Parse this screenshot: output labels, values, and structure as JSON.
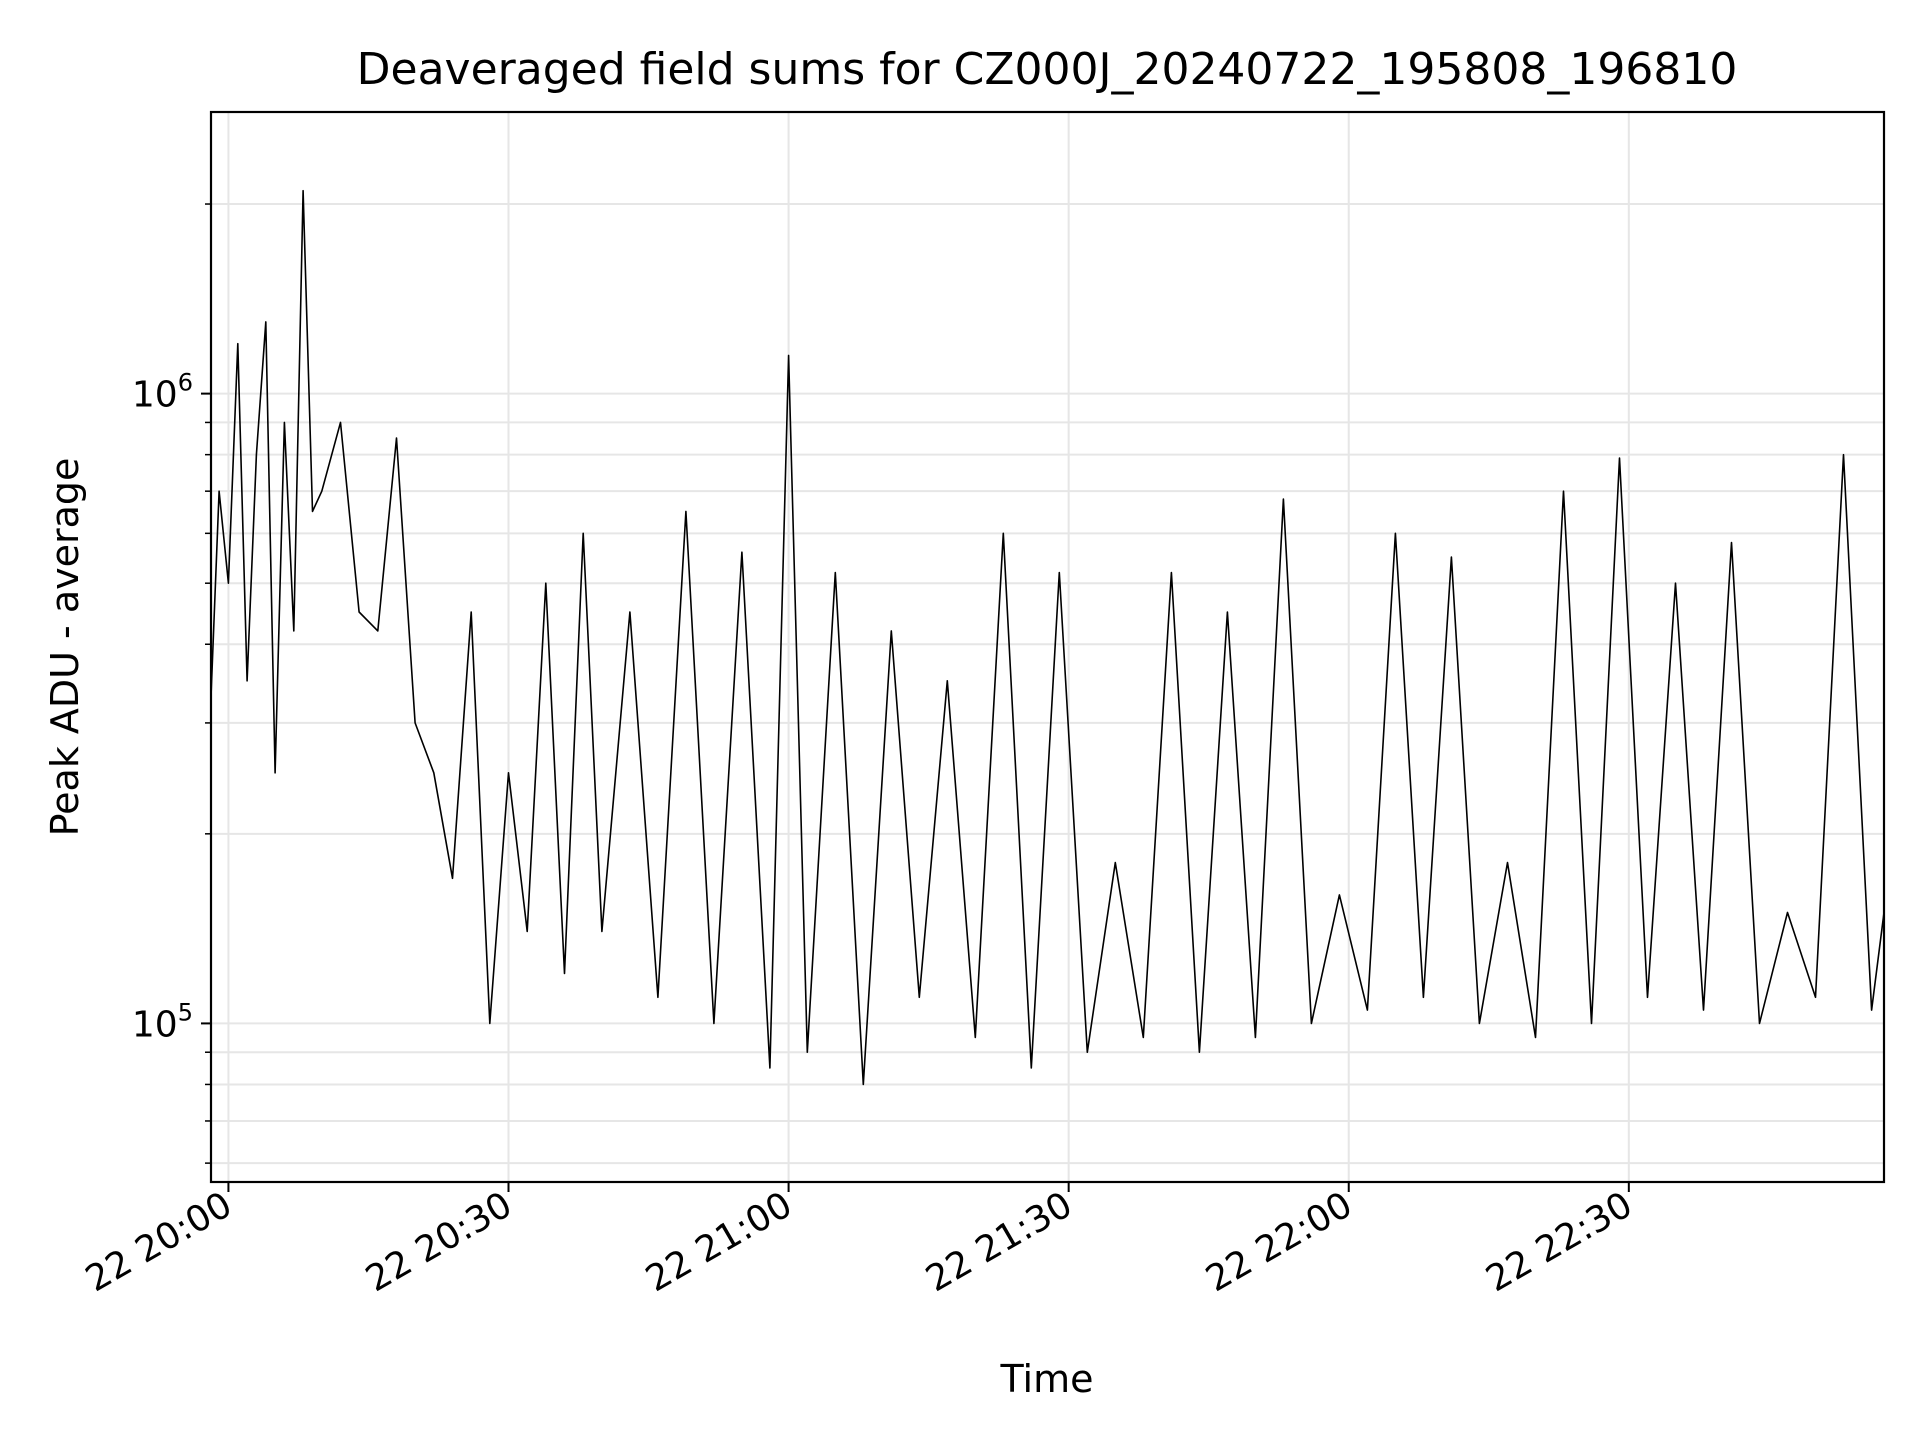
{
  "chart_data": {
    "type": "line",
    "title": "Deaveraged field sums for CZ000J_20240722_195808_196810",
    "xlabel": "Time",
    "ylabel": "Peak ADU - average",
    "yscale": "log",
    "ylim": [
      56000,
      2800000
    ],
    "grid": true,
    "line_color": "#000000",
    "xlim": [
      "2024-07-22 19:58:08",
      "2024-07-22 22:57:20"
    ],
    "x_ticks": [
      {
        "t": "2024-07-22 20:00",
        "label": "22 20:00"
      },
      {
        "t": "2024-07-22 20:30",
        "label": "22 20:30"
      },
      {
        "t": "2024-07-22 21:00",
        "label": "22 21:00"
      },
      {
        "t": "2024-07-22 21:30",
        "label": "22 21:30"
      },
      {
        "t": "2024-07-22 22:00",
        "label": "22 22:00"
      },
      {
        "t": "2024-07-22 22:30",
        "label": "22 22:30"
      }
    ],
    "y_ticks": [
      {
        "value": 100000,
        "base": "10",
        "exp": "5"
      },
      {
        "value": 1000000,
        "base": "10",
        "exp": "6"
      }
    ],
    "series": [
      {
        "x": [
          "2024-07-22 19:58:08",
          "2024-07-22 19:59:00",
          "2024-07-22 20:00:00",
          "2024-07-22 20:01:00",
          "2024-07-22 20:02:00",
          "2024-07-22 20:03:00",
          "2024-07-22 20:04:00",
          "2024-07-22 20:05:00",
          "2024-07-22 20:06:00",
          "2024-07-22 20:07:00",
          "2024-07-22 20:08:00",
          "2024-07-22 20:09:00",
          "2024-07-22 20:10:00",
          "2024-07-22 20:12:00",
          "2024-07-22 20:14:00",
          "2024-07-22 20:16:00",
          "2024-07-22 20:18:00",
          "2024-07-22 20:20:00",
          "2024-07-22 20:22:00",
          "2024-07-22 20:24:00",
          "2024-07-22 20:26:00",
          "2024-07-22 20:28:00",
          "2024-07-22 20:30:00",
          "2024-07-22 20:32:00",
          "2024-07-22 20:34:00",
          "2024-07-22 20:36:00",
          "2024-07-22 20:38:00",
          "2024-07-22 20:40:00",
          "2024-07-22 20:43:00",
          "2024-07-22 20:46:00",
          "2024-07-22 20:49:00",
          "2024-07-22 20:52:00",
          "2024-07-22 20:55:00",
          "2024-07-22 20:58:00",
          "2024-07-22 21:00:00",
          "2024-07-22 21:02:00",
          "2024-07-22 21:05:00",
          "2024-07-22 21:08:00",
          "2024-07-22 21:11:00",
          "2024-07-22 21:14:00",
          "2024-07-22 21:17:00",
          "2024-07-22 21:20:00",
          "2024-07-22 21:23:00",
          "2024-07-22 21:26:00",
          "2024-07-22 21:29:00",
          "2024-07-22 21:32:00",
          "2024-07-22 21:35:00",
          "2024-07-22 21:38:00",
          "2024-07-22 21:41:00",
          "2024-07-22 21:44:00",
          "2024-07-22 21:47:00",
          "2024-07-22 21:50:00",
          "2024-07-22 21:53:00",
          "2024-07-22 21:56:00",
          "2024-07-22 21:59:00",
          "2024-07-22 22:02:00",
          "2024-07-22 22:05:00",
          "2024-07-22 22:08:00",
          "2024-07-22 22:11:00",
          "2024-07-22 22:14:00",
          "2024-07-22 22:17:00",
          "2024-07-22 22:20:00",
          "2024-07-22 22:23:00",
          "2024-07-22 22:26:00",
          "2024-07-22 22:29:00",
          "2024-07-22 22:32:00",
          "2024-07-22 22:35:00",
          "2024-07-22 22:38:00",
          "2024-07-22 22:41:00",
          "2024-07-22 22:44:00",
          "2024-07-22 22:47:00",
          "2024-07-22 22:50:00",
          "2024-07-22 22:53:00",
          "2024-07-22 22:56:00",
          "2024-07-22 22:57:20"
        ],
        "y": [
          330000,
          700000,
          500000,
          1200000,
          350000,
          800000,
          1300000,
          250000,
          900000,
          420000,
          2100000,
          650000,
          700000,
          900000,
          450000,
          420000,
          850000,
          300000,
          250000,
          170000,
          450000,
          100000,
          250000,
          140000,
          500000,
          120000,
          600000,
          140000,
          450000,
          110000,
          650000,
          100000,
          560000,
          85000,
          1150000,
          90000,
          520000,
          80000,
          420000,
          110000,
          350000,
          95000,
          600000,
          85000,
          520000,
          90000,
          180000,
          95000,
          520000,
          90000,
          450000,
          95000,
          680000,
          100000,
          160000,
          105000,
          600000,
          110000,
          550000,
          100000,
          180000,
          95000,
          700000,
          100000,
          790000,
          110000,
          500000,
          105000,
          580000,
          100000,
          150000,
          110000,
          800000,
          105000,
          150000
        ]
      }
    ]
  }
}
